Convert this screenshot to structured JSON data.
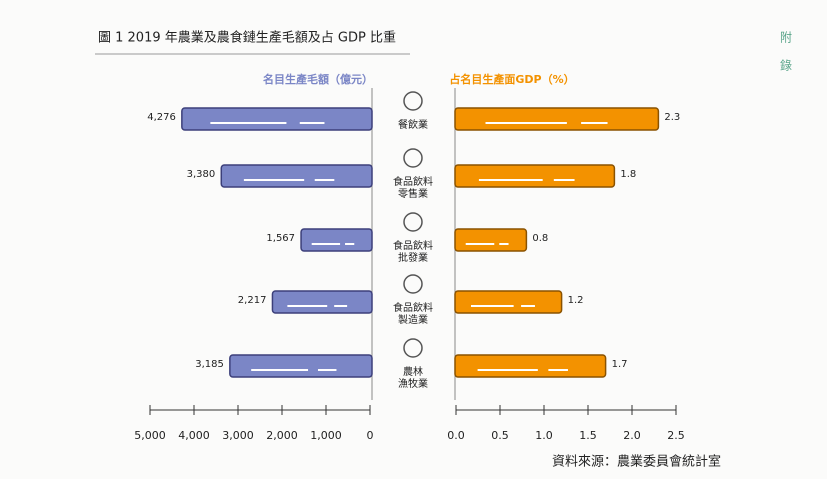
{
  "header": {
    "title": "圖 1  2019 年農業及農食鏈生產毛額及占 GDP 比重",
    "side": [
      "附",
      "錄"
    ]
  },
  "chart_data": {
    "type": "bar",
    "orientation": "horizontal",
    "categories": [
      "餐飲業",
      "食品飲料\n零售業",
      "食品飲料\n批發業",
      "食品飲料\n製造業",
      "農林\n漁牧業"
    ],
    "series": [
      {
        "name": "名目生產毛額（億元）",
        "color": "#7b86c6",
        "values": [
          4276,
          3380,
          1567,
          2217,
          3185
        ],
        "value_labels": [
          "4,276",
          "3,380",
          "1,567",
          "2,217",
          "3,185"
        ],
        "xlim": [
          5000,
          0
        ],
        "xticks": [
          {
            "value": 5000,
            "label": "5,000"
          },
          {
            "value": 4000,
            "label": "4,000"
          },
          {
            "value": 3000,
            "label": "3,000"
          },
          {
            "value": 2000,
            "label": "2,000"
          },
          {
            "value": 1000,
            "label": "1,000"
          },
          0
        ]
      },
      {
        "name": "占名目生產面GDP（%）",
        "color": "#f39200",
        "values": [
          2.3,
          1.8,
          0.8,
          1.2,
          1.7
        ],
        "xlim": [
          0,
          2.5
        ],
        "xticks": [
          {
            "value": 0,
            "label": "0.0"
          },
          0.5,
          {
            "value": 1,
            "label": "1.0"
          },
          1.5,
          {
            "value": 2,
            "label": "2.0"
          },
          2.5
        ]
      }
    ]
  },
  "source": "資料來源：農業委員會統計室"
}
